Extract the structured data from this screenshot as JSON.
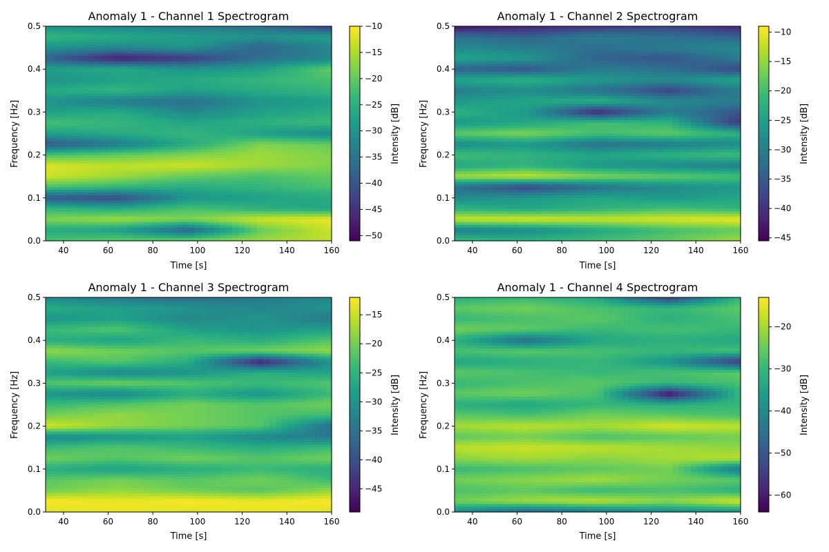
{
  "figure": {
    "background": "#ffffff",
    "colormap": "viridis",
    "colormap_stops": [
      "#440154",
      "#482878",
      "#3e4989",
      "#31688e",
      "#26828e",
      "#1f9e89",
      "#35b779",
      "#6ece58",
      "#b5de2b",
      "#fde725"
    ]
  },
  "chart_data": [
    {
      "type": "heatmap",
      "title": "Anomaly 1 - Channel 1 Spectrogram",
      "xlabel": "Time [s]",
      "ylabel": "Frequency [Hz]",
      "colorbar_label": "Intensity [dB]",
      "xlim": [
        32,
        160
      ],
      "ylim": [
        0,
        0.5
      ],
      "clim": [
        -51,
        -10
      ],
      "xticks": [
        40,
        60,
        80,
        100,
        120,
        140,
        160
      ],
      "xtick_labels": [
        "40",
        "60",
        "80",
        "100",
        "120",
        "140",
        "160"
      ],
      "yticks": [
        0,
        0.1,
        0.2,
        0.3,
        0.4,
        0.5
      ],
      "ytick_labels": [
        "0.0",
        "0.1",
        "0.2",
        "0.3",
        "0.4",
        "0.5"
      ],
      "cbar_ticks": [
        -10,
        -15,
        -20,
        -25,
        -30,
        -35,
        -40,
        -45,
        -50
      ],
      "cbar_tick_labels": [
        "−10",
        "−15",
        "−20",
        "−25",
        "−30",
        "−35",
        "−40",
        "−45",
        "−50"
      ],
      "time": [
        32,
        64,
        96,
        128,
        160
      ],
      "frequency": [
        0.0,
        0.025,
        0.05,
        0.075,
        0.1,
        0.125,
        0.15,
        0.175,
        0.2,
        0.225,
        0.25,
        0.275,
        0.3,
        0.325,
        0.35,
        0.375,
        0.4,
        0.425,
        0.45,
        0.475,
        0.5
      ],
      "intensity": [
        [
          -22,
          -20,
          -19,
          -16,
          -14
        ],
        [
          -26,
          -28,
          -38,
          -20,
          -13
        ],
        [
          -18,
          -16,
          -18,
          -13,
          -11
        ],
        [
          -24,
          -26,
          -22,
          -25,
          -27
        ],
        [
          -40,
          -42,
          -30,
          -28,
          -26
        ],
        [
          -22,
          -24,
          -26,
          -24,
          -22
        ],
        [
          -13,
          -16,
          -20,
          -22,
          -20
        ],
        [
          -12,
          -14,
          -13,
          -16,
          -18
        ],
        [
          -22,
          -20,
          -18,
          -16,
          -18
        ],
        [
          -40,
          -34,
          -26,
          -18,
          -20
        ],
        [
          -28,
          -26,
          -24,
          -28,
          -32
        ],
        [
          -22,
          -24,
          -27,
          -25,
          -23
        ],
        [
          -28,
          -26,
          -32,
          -28,
          -26
        ],
        [
          -30,
          -34,
          -36,
          -30,
          -28
        ],
        [
          -26,
          -24,
          -28,
          -26,
          -24
        ],
        [
          -30,
          -28,
          -26,
          -24,
          -22
        ],
        [
          -28,
          -26,
          -30,
          -28,
          -20
        ],
        [
          -38,
          -48,
          -44,
          -36,
          -32
        ],
        [
          -30,
          -32,
          -30,
          -38,
          -32
        ],
        [
          -24,
          -26,
          -28,
          -30,
          -28
        ],
        [
          -30,
          -32,
          -34,
          -36,
          -44
        ]
      ]
    },
    {
      "type": "heatmap",
      "title": "Anomaly 1 - Channel 2 Spectrogram",
      "xlabel": "Time [s]",
      "ylabel": "Frequency [Hz]",
      "colorbar_label": "Intensity [dB]",
      "xlim": [
        32,
        160
      ],
      "ylim": [
        0,
        0.5
      ],
      "clim": [
        -45.5,
        -9
      ],
      "xticks": [
        40,
        60,
        80,
        100,
        120,
        140,
        160
      ],
      "xtick_labels": [
        "40",
        "60",
        "80",
        "100",
        "120",
        "140",
        "160"
      ],
      "yticks": [
        0,
        0.1,
        0.2,
        0.3,
        0.4,
        0.5
      ],
      "ytick_labels": [
        "0.0",
        "0.1",
        "0.2",
        "0.3",
        "0.4",
        "0.5"
      ],
      "cbar_ticks": [
        -10,
        -15,
        -20,
        -25,
        -30,
        -35,
        -40,
        -45
      ],
      "cbar_tick_labels": [
        "−10",
        "−15",
        "−20",
        "−25",
        "−30",
        "−35",
        "−40",
        "−45"
      ],
      "time": [
        32,
        64,
        96,
        128,
        160
      ],
      "frequency": [
        0.0,
        0.025,
        0.05,
        0.075,
        0.1,
        0.125,
        0.15,
        0.175,
        0.2,
        0.225,
        0.25,
        0.275,
        0.3,
        0.325,
        0.35,
        0.375,
        0.4,
        0.425,
        0.45,
        0.475,
        0.5
      ],
      "intensity": [
        [
          -20,
          -22,
          -20,
          -18,
          -14
        ],
        [
          -30,
          -28,
          -24,
          -20,
          -18
        ],
        [
          -12,
          -11,
          -12,
          -11,
          -10
        ],
        [
          -22,
          -24,
          -22,
          -20,
          -22
        ],
        [
          -28,
          -26,
          -24,
          -26,
          -24
        ],
        [
          -32,
          -38,
          -32,
          -28,
          -26
        ],
        [
          -14,
          -12,
          -16,
          -18,
          -20
        ],
        [
          -24,
          -22,
          -26,
          -28,
          -30
        ],
        [
          -20,
          -22,
          -24,
          -22,
          -20
        ],
        [
          -28,
          -26,
          -32,
          -30,
          -28
        ],
        [
          -18,
          -16,
          -20,
          -18,
          -22
        ],
        [
          -26,
          -24,
          -20,
          -22,
          -40
        ],
        [
          -22,
          -26,
          -42,
          -30,
          -36
        ],
        [
          -26,
          -24,
          -22,
          -28,
          -30
        ],
        [
          -30,
          -28,
          -32,
          -38,
          -30
        ],
        [
          -24,
          -22,
          -26,
          -28,
          -24
        ],
        [
          -34,
          -36,
          -30,
          -32,
          -38
        ],
        [
          -24,
          -26,
          -34,
          -36,
          -30
        ],
        [
          -28,
          -30,
          -32,
          -30,
          -28
        ],
        [
          -32,
          -34,
          -30,
          -32,
          -34
        ],
        [
          -44,
          -42,
          -40,
          -38,
          -42
        ]
      ]
    },
    {
      "type": "heatmap",
      "title": "Anomaly 1 - Channel 3 Spectrogram",
      "xlabel": "Time [s]",
      "ylabel": "Frequency [Hz]",
      "colorbar_label": "Intensity [dB]",
      "xlim": [
        32,
        160
      ],
      "ylim": [
        0,
        0.5
      ],
      "clim": [
        -49,
        -12
      ],
      "xticks": [
        40,
        60,
        80,
        100,
        120,
        140,
        160
      ],
      "xtick_labels": [
        "40",
        "60",
        "80",
        "100",
        "120",
        "140",
        "160"
      ],
      "yticks": [
        0,
        0.1,
        0.2,
        0.3,
        0.4,
        0.5
      ],
      "ytick_labels": [
        "0.0",
        "0.1",
        "0.2",
        "0.3",
        "0.4",
        "0.5"
      ],
      "cbar_ticks": [
        -15,
        -20,
        -25,
        -30,
        -35,
        -40,
        -45
      ],
      "cbar_tick_labels": [
        "−15",
        "−20",
        "−25",
        "−30",
        "−35",
        "−40",
        "−45"
      ],
      "time": [
        32,
        64,
        96,
        128,
        160
      ],
      "frequency": [
        0.0,
        0.025,
        0.05,
        0.075,
        0.1,
        0.125,
        0.15,
        0.175,
        0.2,
        0.225,
        0.25,
        0.275,
        0.3,
        0.325,
        0.35,
        0.375,
        0.4,
        0.425,
        0.45,
        0.475,
        0.5
      ],
      "intensity": [
        [
          -14,
          -13,
          -14,
          -13,
          -14
        ],
        [
          -12,
          -13,
          -12,
          -13,
          -12
        ],
        [
          -20,
          -18,
          -20,
          -22,
          -18
        ],
        [
          -22,
          -20,
          -22,
          -20,
          -24
        ],
        [
          -26,
          -28,
          -26,
          -24,
          -26
        ],
        [
          -20,
          -22,
          -20,
          -22,
          -20
        ],
        [
          -24,
          -22,
          -24,
          -26,
          -24
        ],
        [
          -32,
          -30,
          -28,
          -32,
          -34
        ],
        [
          -14,
          -18,
          -20,
          -22,
          -36
        ],
        [
          -20,
          -18,
          -20,
          -22,
          -24
        ],
        [
          -24,
          -22,
          -20,
          -22,
          -20
        ],
        [
          -30,
          -32,
          -26,
          -30,
          -24
        ],
        [
          -22,
          -20,
          -22,
          -24,
          -22
        ],
        [
          -28,
          -32,
          -30,
          -26,
          -28
        ],
        [
          -24,
          -22,
          -26,
          -46,
          -30
        ],
        [
          -18,
          -20,
          -22,
          -20,
          -18
        ],
        [
          -26,
          -28,
          -24,
          -26,
          -22
        ],
        [
          -24,
          -22,
          -28,
          -30,
          -28
        ],
        [
          -30,
          -28,
          -32,
          -30,
          -34
        ],
        [
          -26,
          -28,
          -30,
          -32,
          -30
        ],
        [
          -32,
          -34,
          -36,
          -34,
          -32
        ]
      ]
    },
    {
      "type": "heatmap",
      "title": "Anomaly 1 - Channel 4 Spectrogram",
      "xlabel": "Time [s]",
      "ylabel": "Frequency [Hz]",
      "colorbar_label": "Intensity [dB]",
      "xlim": [
        32,
        160
      ],
      "ylim": [
        0,
        0.5
      ],
      "clim": [
        -64,
        -13
      ],
      "xticks": [
        40,
        60,
        80,
        100,
        120,
        140,
        160
      ],
      "xtick_labels": [
        "40",
        "60",
        "80",
        "100",
        "120",
        "140",
        "160"
      ],
      "yticks": [
        0,
        0.1,
        0.2,
        0.3,
        0.4,
        0.5
      ],
      "ytick_labels": [
        "0.0",
        "0.1",
        "0.2",
        "0.3",
        "0.4",
        "0.5"
      ],
      "cbar_ticks": [
        -20,
        -30,
        -40,
        -50,
        -60
      ],
      "cbar_tick_labels": [
        "−20",
        "−30",
        "−40",
        "−50",
        "−60"
      ],
      "time": [
        32,
        64,
        96,
        128,
        160
      ],
      "frequency": [
        0.0,
        0.025,
        0.05,
        0.075,
        0.1,
        0.125,
        0.15,
        0.175,
        0.2,
        0.225,
        0.25,
        0.275,
        0.3,
        0.325,
        0.35,
        0.375,
        0.4,
        0.425,
        0.45,
        0.475,
        0.5
      ],
      "intensity": [
        [
          -40,
          -48,
          -44,
          -40,
          -38
        ],
        [
          -24,
          -20,
          -18,
          -22,
          -16
        ],
        [
          -28,
          -26,
          -30,
          -28,
          -32
        ],
        [
          -24,
          -22,
          -20,
          -24,
          -26
        ],
        [
          -30,
          -28,
          -26,
          -24,
          -44
        ],
        [
          -22,
          -20,
          -22,
          -20,
          -18
        ],
        [
          -18,
          -17,
          -18,
          -20,
          -22
        ],
        [
          -26,
          -24,
          -28,
          -26,
          -24
        ],
        [
          -20,
          -18,
          -20,
          -16,
          -18
        ],
        [
          -26,
          -28,
          -24,
          -26,
          -28
        ],
        [
          -32,
          -34,
          -30,
          -32,
          -30
        ],
        [
          -26,
          -24,
          -28,
          -62,
          -30
        ],
        [
          -30,
          -28,
          -26,
          -30,
          -28
        ],
        [
          -26,
          -28,
          -30,
          -28,
          -26
        ],
        [
          -34,
          -32,
          -30,
          -38,
          -56
        ],
        [
          -28,
          -26,
          -28,
          -30,
          -28
        ],
        [
          -32,
          -46,
          -34,
          -32,
          -34
        ],
        [
          -24,
          -26,
          -30,
          -28,
          -30
        ],
        [
          -30,
          -28,
          -26,
          -32,
          -28
        ],
        [
          -26,
          -24,
          -28,
          -30,
          -26
        ],
        [
          -32,
          -30,
          -34,
          -56,
          -30
        ]
      ]
    }
  ]
}
